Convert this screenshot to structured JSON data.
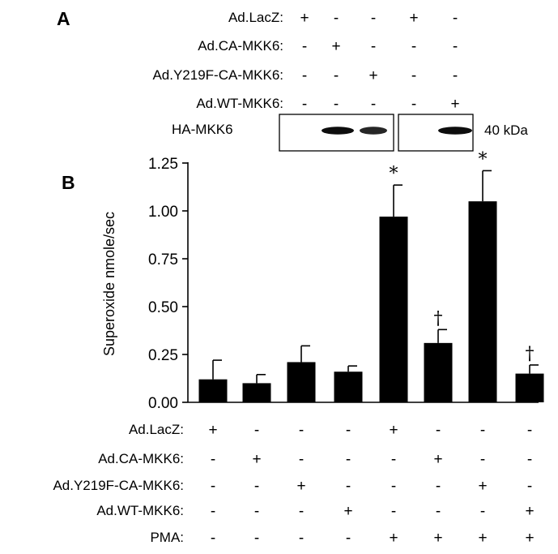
{
  "panel_a": {
    "letter": "A",
    "treatments": [
      {
        "label": "Ad.LacZ:",
        "signs": [
          "+",
          "-",
          "-",
          "+",
          "-"
        ]
      },
      {
        "label": "Ad.CA-MKK6:",
        "signs": [
          "-",
          "+",
          "-",
          "-",
          "-"
        ]
      },
      {
        "label": "Ad.Y219F-CA-MKK6:",
        "signs": [
          "-",
          "-",
          "+",
          "-",
          "-"
        ]
      },
      {
        "label": "Ad.WT-MKK6:",
        "signs": [
          "-",
          "-",
          "-",
          "-",
          "+"
        ]
      }
    ],
    "blot": {
      "label": "HA-MKK6",
      "size_label": "40 kDa",
      "band_intensity": [
        0,
        0.95,
        0.85,
        0,
        0.95
      ]
    }
  },
  "panel_b": {
    "letter": "B",
    "treatments": [
      {
        "label": "Ad.LacZ:",
        "signs": [
          "+",
          "-",
          "-",
          "-",
          "+",
          "-",
          "-",
          "-"
        ]
      },
      {
        "label": "Ad.CA-MKK6:",
        "signs": [
          "-",
          "+",
          "-",
          "-",
          "-",
          "+",
          "-",
          "-"
        ]
      },
      {
        "label": "Ad.Y219F-CA-MKK6:",
        "signs": [
          "-",
          "-",
          "+",
          "-",
          "-",
          "-",
          "+",
          "-"
        ]
      },
      {
        "label": "Ad.WT-MKK6:",
        "signs": [
          "-",
          "-",
          "-",
          "+",
          "-",
          "-",
          "-",
          "+"
        ]
      },
      {
        "label": "PMA:",
        "signs": [
          "-",
          "-",
          "-",
          "-",
          "+",
          "+",
          "+",
          "+"
        ]
      }
    ]
  },
  "chart_data": {
    "type": "bar",
    "title": "",
    "xlabel": "",
    "ylabel": "Superoxide nmole/sec",
    "ylim": [
      0,
      1.25
    ],
    "yticks": [
      "0.00",
      "0.25",
      "0.50",
      "0.75",
      "1.00",
      "1.25"
    ],
    "values": [
      0.12,
      0.1,
      0.21,
      0.16,
      0.97,
      0.31,
      1.05,
      0.15
    ],
    "errors": [
      0.1,
      0.045,
      0.085,
      0.03,
      0.165,
      0.07,
      0.16,
      0.045
    ],
    "annotations": [
      "",
      "",
      "",
      "",
      "*",
      "†",
      "*",
      "†"
    ],
    "bar_color": "#000000",
    "grid": false
  }
}
